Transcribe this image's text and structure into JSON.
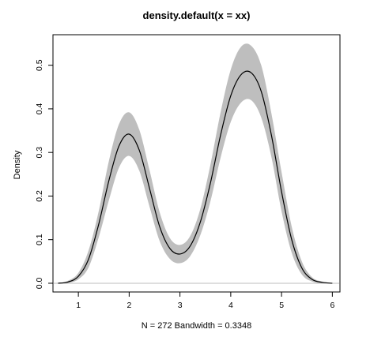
{
  "chart_data": {
    "type": "area",
    "title": "density.default(x = xx)",
    "xlabel": "N = 272   Bandwidth = 0.3348",
    "ylabel": "Density",
    "xlim": [
      0.5,
      6.15
    ],
    "ylim": [
      -0.02,
      0.57
    ],
    "x_ticks": [
      1,
      2,
      3,
      4,
      5,
      6
    ],
    "y_ticks": [
      0.0,
      0.1,
      0.2,
      0.3,
      0.4,
      0.5
    ],
    "x_tick_labels": [
      "1",
      "2",
      "3",
      "4",
      "5",
      "6"
    ],
    "y_tick_labels": [
      "0.0",
      "0.1",
      "0.2",
      "0.3",
      "0.4",
      "0.5"
    ],
    "grid": false,
    "series": [
      {
        "role": "density_estimate",
        "color": "#000000",
        "x": [
          0.6,
          0.8,
          1.0,
          1.2,
          1.4,
          1.6,
          1.8,
          2.0,
          2.2,
          2.4,
          2.6,
          2.8,
          3.0,
          3.2,
          3.4,
          3.6,
          3.8,
          4.0,
          4.2,
          4.4,
          4.6,
          4.8,
          5.0,
          5.2,
          5.4,
          5.6,
          5.8,
          6.0
        ],
        "y": [
          0.0,
          0.003,
          0.016,
          0.055,
          0.135,
          0.235,
          0.315,
          0.342,
          0.305,
          0.218,
          0.13,
          0.08,
          0.067,
          0.085,
          0.14,
          0.23,
          0.34,
          0.43,
          0.478,
          0.483,
          0.44,
          0.34,
          0.21,
          0.1,
          0.035,
          0.009,
          0.002,
          0.0
        ]
      },
      {
        "role": "confidence_band_upper",
        "color": "#bebebe",
        "x": [
          0.6,
          0.8,
          1.0,
          1.2,
          1.4,
          1.6,
          1.8,
          2.0,
          2.2,
          2.4,
          2.6,
          2.8,
          3.0,
          3.2,
          3.4,
          3.6,
          3.8,
          4.0,
          4.2,
          4.4,
          4.6,
          4.8,
          5.0,
          5.2,
          5.4,
          5.6,
          5.8,
          6.0
        ],
        "y": [
          0.0,
          0.006,
          0.024,
          0.075,
          0.165,
          0.28,
          0.365,
          0.392,
          0.352,
          0.26,
          0.163,
          0.104,
          0.088,
          0.108,
          0.17,
          0.272,
          0.392,
          0.49,
          0.542,
          0.545,
          0.5,
          0.39,
          0.255,
          0.13,
          0.05,
          0.014,
          0.004,
          0.0
        ]
      },
      {
        "role": "confidence_band_lower",
        "color": "#bebebe",
        "x": [
          0.6,
          0.8,
          1.0,
          1.2,
          1.4,
          1.6,
          1.8,
          2.0,
          2.2,
          2.4,
          2.6,
          2.8,
          3.0,
          3.2,
          3.4,
          3.6,
          3.8,
          4.0,
          4.2,
          4.4,
          4.6,
          4.8,
          5.0,
          5.2,
          5.4,
          5.6,
          5.8,
          6.0
        ],
        "y": [
          0.0,
          0.001,
          0.009,
          0.036,
          0.105,
          0.19,
          0.265,
          0.292,
          0.258,
          0.176,
          0.097,
          0.056,
          0.046,
          0.062,
          0.11,
          0.188,
          0.288,
          0.37,
          0.414,
          0.42,
          0.38,
          0.29,
          0.165,
          0.07,
          0.02,
          0.004,
          0.0,
          0.0
        ]
      }
    ],
    "baseline": {
      "y": 0,
      "color": "#bebebe"
    }
  }
}
